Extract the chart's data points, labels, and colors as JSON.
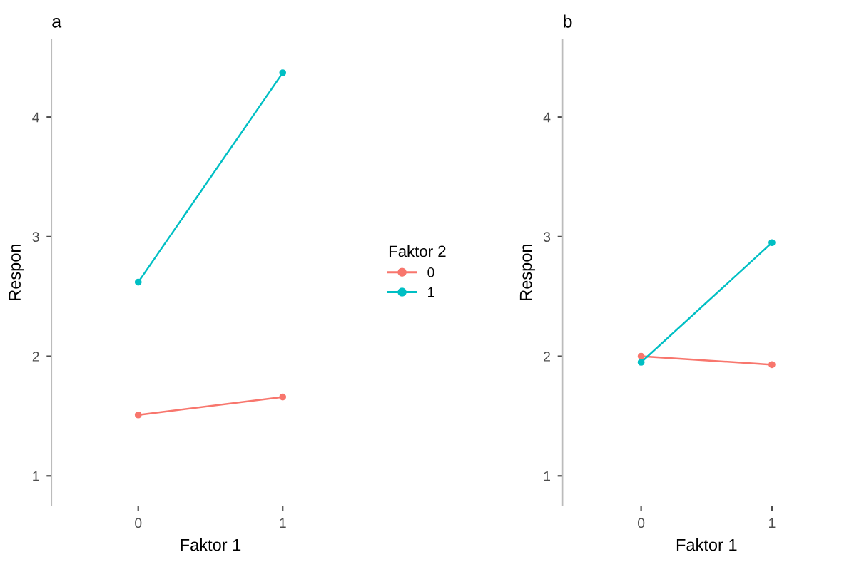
{
  "chart_data": [
    {
      "type": "line",
      "title": "a",
      "xlabel": "Faktor 1",
      "ylabel": "Respon",
      "legend_title": "Faktor 2",
      "legend": "right",
      "marker": "circle",
      "grid": false,
      "categories": [
        "0",
        "1"
      ],
      "ylim": [
        0.75,
        4.65
      ],
      "yticks": [
        1,
        2,
        3,
        4
      ],
      "series": [
        {
          "name": "0",
          "color": "#f8766d",
          "values": [
            1.51,
            1.66
          ]
        },
        {
          "name": "1",
          "color": "#00bfc4",
          "values": [
            2.62,
            4.37
          ]
        }
      ]
    },
    {
      "type": "line",
      "title": "b",
      "xlabel": "Faktor 1",
      "ylabel": "Respon",
      "legend": false,
      "marker": "circle",
      "grid": false,
      "categories": [
        "0",
        "1"
      ],
      "ylim": [
        0.75,
        4.65
      ],
      "yticks": [
        1,
        2,
        3,
        4
      ],
      "series": [
        {
          "name": "0",
          "color": "#f8766d",
          "values": [
            2.0,
            1.93
          ]
        },
        {
          "name": "1",
          "color": "#00bfc4",
          "values": [
            1.95,
            2.95
          ]
        }
      ]
    }
  ]
}
